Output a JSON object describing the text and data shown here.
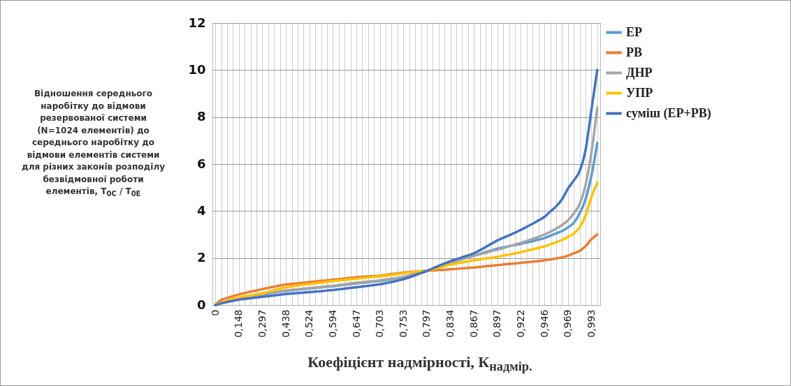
{
  "chart_data": {
    "type": "line",
    "xlabel": "Коефіцієнт надмірності, К$_{надмір.}$",
    "ylabel": "Відношення середнього наробітку до відмови резервованої системи (N=1024 елементів) до середнього наробітку до відмови елементів системи для різних законів розподілу безвідмовної роботи елементів, T$_{0C}$ / T$_{0E}$",
    "categories": [
      "0",
      null,
      null,
      null,
      "0,148",
      null,
      null,
      null,
      "0,297",
      null,
      null,
      null,
      "0,438",
      null,
      null,
      null,
      "0,524",
      null,
      null,
      null,
      "0,594",
      null,
      null,
      null,
      "0,647",
      null,
      null,
      null,
      "0,703",
      null,
      null,
      null,
      "0,753",
      null,
      null,
      null,
      "0,797",
      null,
      null,
      null,
      "0,834",
      null,
      null,
      null,
      "0,867",
      null,
      null,
      null,
      "0,897",
      null,
      null,
      null,
      "0,922",
      null,
      null,
      null,
      "0,946",
      null,
      null,
      null,
      "0,969",
      null,
      null,
      null,
      "0,993",
      null
    ],
    "series": [
      {
        "name": "ЕР",
        "color": "#5b9bd5",
        "values": [
          0,
          0.09,
          0.16,
          0.22,
          0.28,
          0.32,
          0.37,
          0.41,
          0.45,
          0.49,
          0.53,
          0.57,
          0.6,
          0.63,
          0.65,
          0.68,
          0.7,
          0.73,
          0.75,
          0.78,
          0.8,
          0.83,
          0.86,
          0.89,
          0.92,
          0.95,
          0.97,
          1.0,
          1.02,
          1.06,
          1.1,
          1.14,
          1.18,
          1.24,
          1.31,
          1.38,
          1.45,
          1.54,
          1.63,
          1.71,
          1.8,
          1.88,
          1.95,
          2.03,
          2.1,
          2.18,
          2.25,
          2.33,
          2.4,
          2.45,
          2.5,
          2.55,
          2.6,
          2.66,
          2.72,
          2.78,
          2.85,
          2.95,
          3.05,
          3.15,
          3.3,
          3.5,
          3.9,
          4.5,
          5.5,
          6.9
        ]
      },
      {
        "name": "РВ",
        "color": "#ed7d31",
        "values": [
          0,
          0.22,
          0.3,
          0.38,
          0.45,
          0.51,
          0.57,
          0.62,
          0.68,
          0.73,
          0.78,
          0.83,
          0.88,
          0.9,
          0.93,
          0.95,
          0.98,
          1.0,
          1.03,
          1.05,
          1.08,
          1.1,
          1.13,
          1.15,
          1.18,
          1.2,
          1.22,
          1.23,
          1.25,
          1.28,
          1.32,
          1.35,
          1.38,
          1.4,
          1.42,
          1.44,
          1.46,
          1.47,
          1.49,
          1.5,
          1.52,
          1.54,
          1.56,
          1.58,
          1.6,
          1.62,
          1.65,
          1.67,
          1.7,
          1.72,
          1.75,
          1.77,
          1.8,
          1.82,
          1.85,
          1.87,
          1.9,
          1.94,
          1.98,
          2.03,
          2.1,
          2.2,
          2.3,
          2.5,
          2.8,
          3.0
        ]
      },
      {
        "name": "ДНР",
        "color": "#a5a5a5",
        "values": [
          0,
          0.09,
          0.16,
          0.22,
          0.28,
          0.32,
          0.37,
          0.41,
          0.45,
          0.49,
          0.54,
          0.58,
          0.62,
          0.65,
          0.67,
          0.7,
          0.72,
          0.75,
          0.77,
          0.8,
          0.82,
          0.85,
          0.88,
          0.92,
          0.95,
          0.97,
          1.0,
          1.02,
          1.05,
          1.09,
          1.12,
          1.16,
          1.2,
          1.26,
          1.32,
          1.38,
          1.45,
          1.54,
          1.63,
          1.71,
          1.8,
          1.88,
          1.95,
          2.03,
          2.1,
          2.16,
          2.22,
          2.29,
          2.35,
          2.42,
          2.5,
          2.57,
          2.65,
          2.73,
          2.82,
          2.9,
          3.0,
          3.12,
          3.25,
          3.4,
          3.6,
          3.9,
          4.3,
          5.1,
          6.5,
          8.4
        ]
      },
      {
        "name": "УПР",
        "color": "#ffc000",
        "values": [
          0,
          0.1,
          0.18,
          0.25,
          0.32,
          0.37,
          0.41,
          0.46,
          0.5,
          0.56,
          0.63,
          0.7,
          0.75,
          0.79,
          0.83,
          0.87,
          0.9,
          0.93,
          0.96,
          0.99,
          1.02,
          1.05,
          1.07,
          1.1,
          1.12,
          1.15,
          1.17,
          1.2,
          1.22,
          1.25,
          1.28,
          1.32,
          1.35,
          1.38,
          1.41,
          1.43,
          1.46,
          1.52,
          1.59,
          1.66,
          1.72,
          1.77,
          1.81,
          1.86,
          1.9,
          1.94,
          1.98,
          2.01,
          2.05,
          2.1,
          2.15,
          2.2,
          2.25,
          2.31,
          2.37,
          2.43,
          2.5,
          2.58,
          2.67,
          2.77,
          2.9,
          3.05,
          3.3,
          3.8,
          4.6,
          5.2
        ]
      },
      {
        "name": "суміш (ЕР+РВ)",
        "color": "#4472c4",
        "values": [
          0,
          0.07,
          0.13,
          0.18,
          0.23,
          0.26,
          0.29,
          0.32,
          0.35,
          0.38,
          0.41,
          0.44,
          0.47,
          0.49,
          0.51,
          0.53,
          0.55,
          0.57,
          0.59,
          0.62,
          0.64,
          0.67,
          0.7,
          0.73,
          0.76,
          0.79,
          0.82,
          0.85,
          0.88,
          0.93,
          0.98,
          1.04,
          1.1,
          1.18,
          1.27,
          1.36,
          1.45,
          1.56,
          1.67,
          1.77,
          1.87,
          1.95,
          2.03,
          2.11,
          2.2,
          2.33,
          2.47,
          2.61,
          2.75,
          2.86,
          2.97,
          3.08,
          3.2,
          3.33,
          3.46,
          3.6,
          3.75,
          3.98,
          4.2,
          4.5,
          4.95,
          5.3,
          5.7,
          6.6,
          8.3,
          10
        ]
      }
    ],
    "ylim": [
      0,
      12
    ],
    "yticks": [
      0,
      2,
      4,
      6,
      8,
      10,
      12
    ],
    "grid": true,
    "legend": "right",
    "marker": "none",
    "line_style": "solid"
  }
}
